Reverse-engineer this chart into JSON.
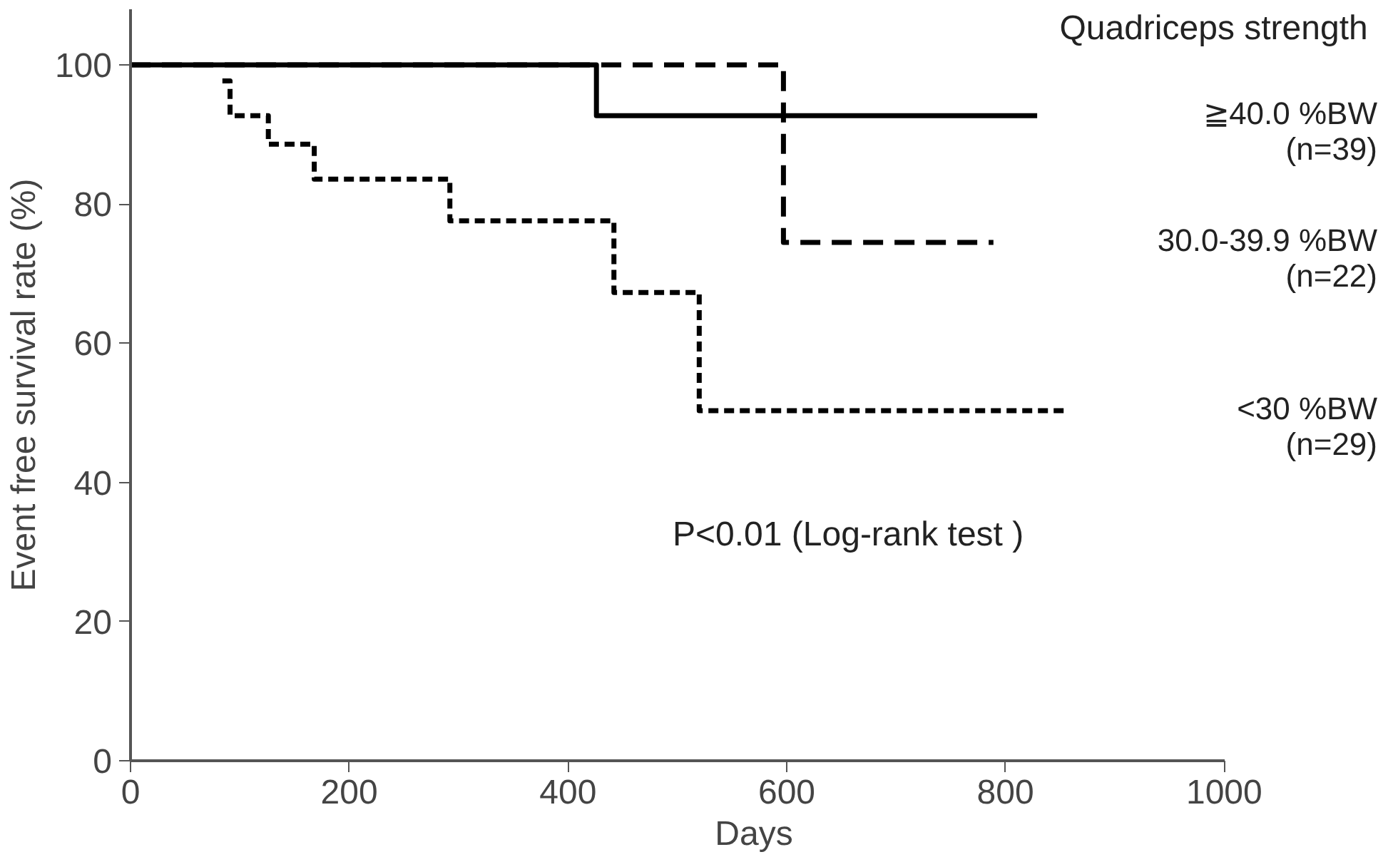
{
  "chart_data": {
    "type": "step",
    "xlabel": "Days",
    "ylabel": "Event free survival rate (%)",
    "legend_title": "Quadriceps  strength",
    "xlim": [
      0,
      1000
    ],
    "ylim": [
      0,
      108
    ],
    "xticks": [
      0,
      200,
      400,
      600,
      800,
      1000
    ],
    "yticks": [
      0,
      20,
      40,
      60,
      80,
      100
    ],
    "grid": false,
    "annotations": [
      "P<0.01 (Log-rank test )"
    ],
    "series": [
      {
        "name": "≧40.0 %BW\n(n=39)",
        "color": "#000000",
        "line_style": "solid",
        "x": [
          0,
          426,
          829
        ],
        "values": [
          100,
          92.7,
          92.7
        ]
      },
      {
        "name": "30.0-39.9 %BW\n(n=22)",
        "color": "#000000",
        "line_style": "dashed",
        "x": [
          0,
          597,
          789
        ],
        "values": [
          100,
          74.5,
          74.5
        ]
      },
      {
        "name": "<30 %BW\n(n=29)",
        "color": "#000000",
        "line_style": "dotted",
        "x": [
          84,
          91,
          126,
          168,
          292,
          442,
          520,
          855
        ],
        "values": [
          97.7,
          92.7,
          88.6,
          83.6,
          77.6,
          67.3,
          50.3,
          50.3
        ]
      }
    ]
  }
}
